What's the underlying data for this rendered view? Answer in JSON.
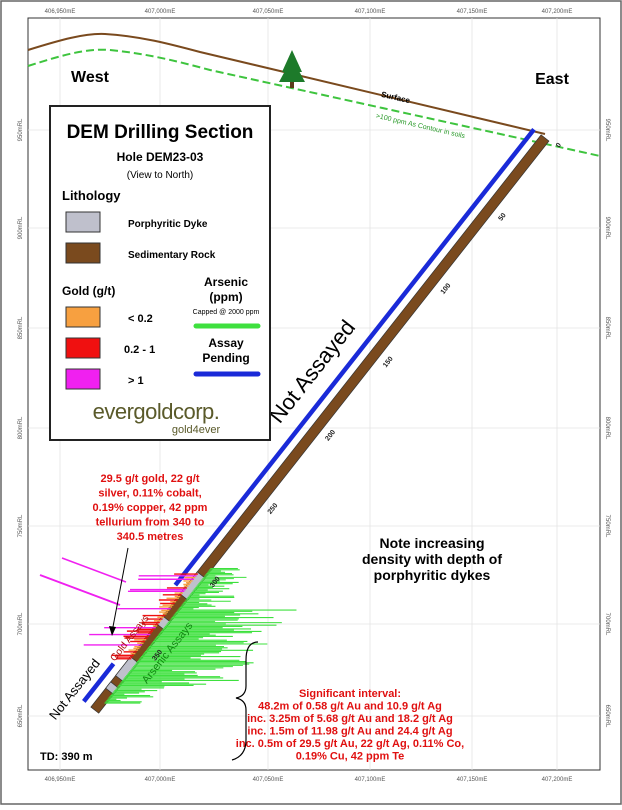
{
  "header": {
    "title": "DEM Drilling Section",
    "hole": "Hole DEM23-03",
    "view": "(View to North)"
  },
  "axes": {
    "eastings": [
      "406,950mE",
      "407,000mE",
      "407,050mE",
      "407,100mE",
      "407,150mE",
      "407,200mE"
    ],
    "elevations": [
      "950mRL",
      "900mRL",
      "850mRL",
      "800mRL",
      "750mRL",
      "700mRL",
      "650mRL"
    ]
  },
  "legend": {
    "lithology": "Lithology",
    "dyke": "Porphyritic Dyke",
    "sediment": "Sedimentary Rock",
    "gold": "Gold (g/t)",
    "gold_low": "< 0.2",
    "gold_mid": "0.2 - 1",
    "gold_high": "> 1",
    "arsenic": [
      "Arsenic",
      "(ppm)"
    ],
    "arsenic_cap": "Capped @ 2000 ppm",
    "pending": [
      "Assay",
      "Pending"
    ],
    "logo": "evergoldcorp.",
    "tagline": "gold4ever"
  },
  "labels": {
    "west": "West",
    "east": "East",
    "surface": "Surface",
    "contour": ">100 ppm As Contour in soils",
    "not_assayed": "Not Assayed",
    "not_assayed_lower": "Not Assayed",
    "arsenic_assays": "Arsenic Assays",
    "gold_assays": "Gold Assays",
    "td": "TD: 390 m",
    "depths": [
      "0",
      "50",
      "100",
      "150",
      "200",
      "250",
      "300",
      "350"
    ]
  },
  "annotations": {
    "high_grade": [
      "29.5 g/t gold, 22 g/t",
      "silver, 0.11% cobalt,",
      "0.19% copper, 42 ppm",
      "tellurium from 340 to",
      "340.5 metres"
    ],
    "note": [
      "Note increasing",
      "density with depth of",
      "porphyritic dykes"
    ],
    "interval": [
      "Significant interval:",
      "48.2m of 0.58 g/t Au and 10.9 g/t Ag",
      "inc. 3.25m of 5.68 g/t Au and 18.2 g/t Ag",
      "inc. 1.5m of 11.98 g/t Au and 24.4 g/t Ag",
      "inc. 0.5m  of 29.5 g/t Au, 22 g/t Ag, 0.11% Co,",
      "0.19% Cu, 42 ppm Te"
    ]
  }
}
